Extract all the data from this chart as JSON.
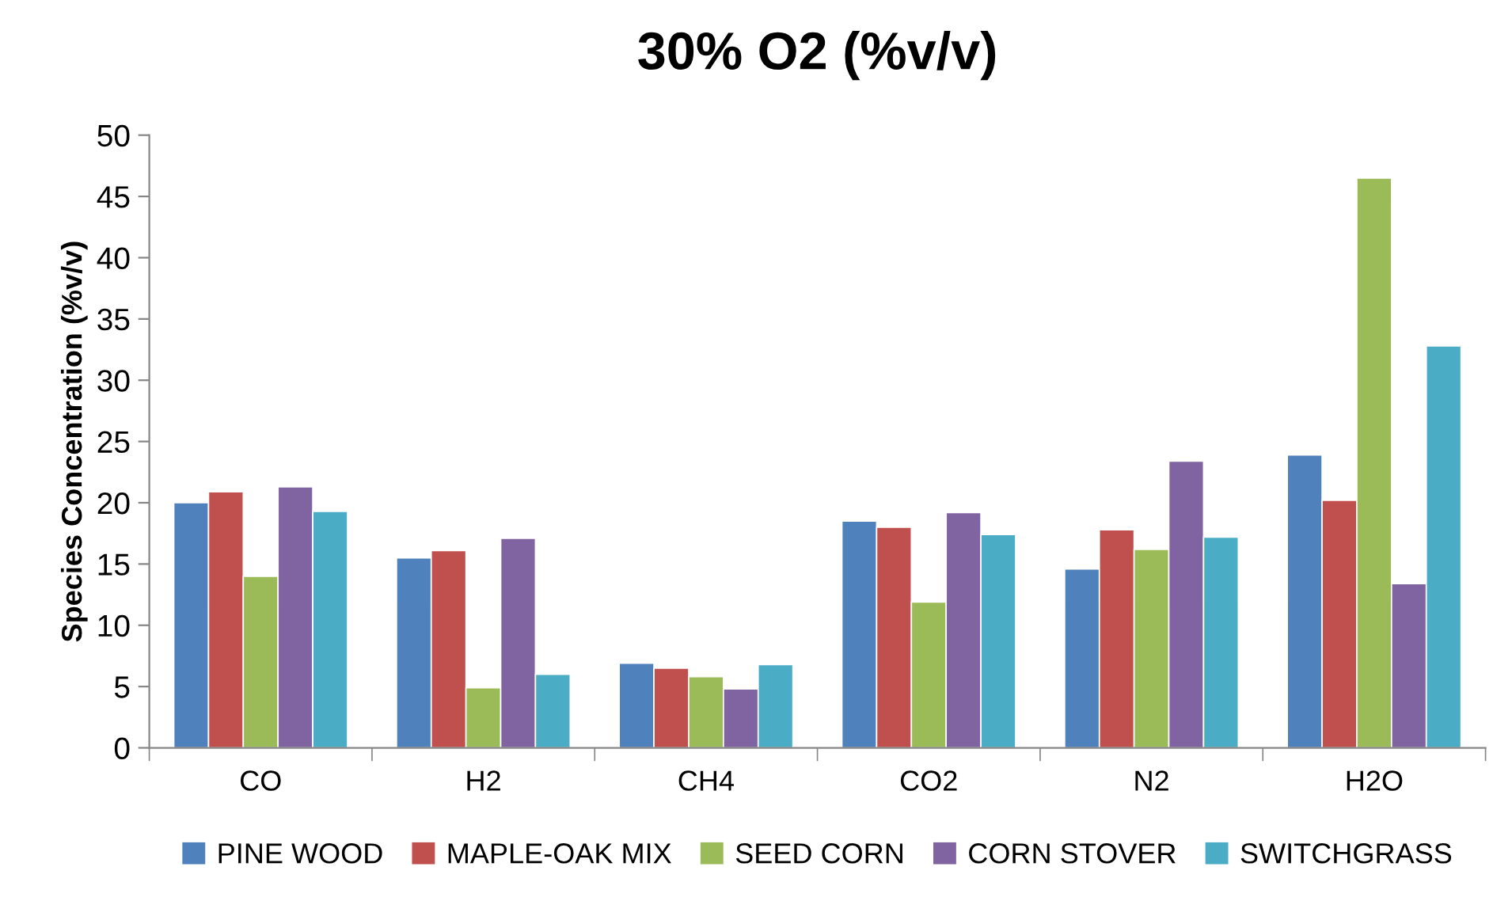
{
  "chart_data": {
    "type": "bar",
    "title": "30% O2 (%v/v)",
    "ylabel": "Species Concentration (%v/v)",
    "categories": [
      "CO",
      "H2",
      "CH4",
      "CO2",
      "N2",
      "H2O"
    ],
    "series": [
      {
        "name": "PINE WOOD",
        "color": "#4f81bd",
        "values": [
          20.0,
          15.5,
          6.9,
          18.5,
          14.6,
          23.9
        ]
      },
      {
        "name": "MAPLE-OAK MIX",
        "color": "#c0504d",
        "values": [
          20.9,
          16.1,
          6.5,
          18.0,
          17.8,
          20.2
        ]
      },
      {
        "name": "SEED CORN",
        "color": "#9bbb59",
        "values": [
          14.0,
          4.9,
          5.8,
          11.9,
          16.2,
          46.5
        ]
      },
      {
        "name": "CORN STOVER",
        "color": "#8064a2",
        "values": [
          21.3,
          17.1,
          4.8,
          19.2,
          23.4,
          13.4
        ]
      },
      {
        "name": "SWITCHGRASS",
        "color": "#4bacc6",
        "values": [
          19.3,
          6.0,
          6.8,
          17.4,
          17.2,
          32.8
        ]
      }
    ],
    "ylim": [
      0,
      50
    ],
    "yticks": [
      0,
      5,
      10,
      15,
      20,
      25,
      30,
      35,
      40,
      45,
      50
    ],
    "grid": false,
    "legend": "bottom"
  }
}
